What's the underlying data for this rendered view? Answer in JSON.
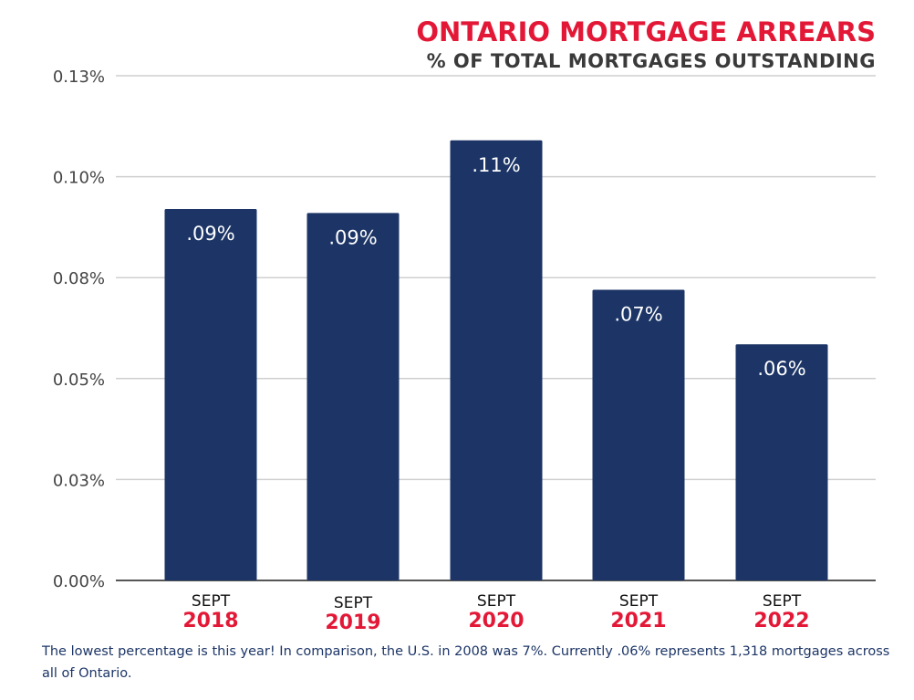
{
  "chart_data": {
    "type": "bar",
    "title": "ONTARIO MORTGAGE ARREARS",
    "subtitle": "% OF TOTAL MORTGAGES OUTSTANDING",
    "categories": [
      {
        "month": "SEPT",
        "year": "2018"
      },
      {
        "month": "SEPT",
        "year": "2019"
      },
      {
        "month": "SEPT",
        "year": "2020"
      },
      {
        "month": "SEPT",
        "year": "2021"
      },
      {
        "month": "SEPT",
        "year": "2022"
      }
    ],
    "values": [
      0.092,
      0.091,
      0.109,
      0.072,
      0.0585
    ],
    "data_labels": [
      ".09%",
      ".09%",
      ".11%",
      ".07%",
      ".06%"
    ],
    "yticks": [
      0,
      0.025,
      0.05,
      0.075,
      0.1,
      0.125
    ],
    "ytick_labels": [
      "0.00%",
      "0.03%",
      "0.05%",
      "0.08%",
      "0.10%",
      "0.13%"
    ],
    "ylim": [
      0,
      0.125
    ],
    "grid": true,
    "xlabel": "",
    "ylabel": ""
  },
  "colors": {
    "bar": "#1c3566",
    "title": "#e31837",
    "year": "#e31837",
    "grid": "#cfcfcf",
    "axis": "#555555",
    "tick_text": "#444444"
  },
  "footnote": "The lowest percentage is this year! In comparison, the U.S. in 2008 was 7%. Currently .06% represents 1,318 mortgages across all of Ontario."
}
